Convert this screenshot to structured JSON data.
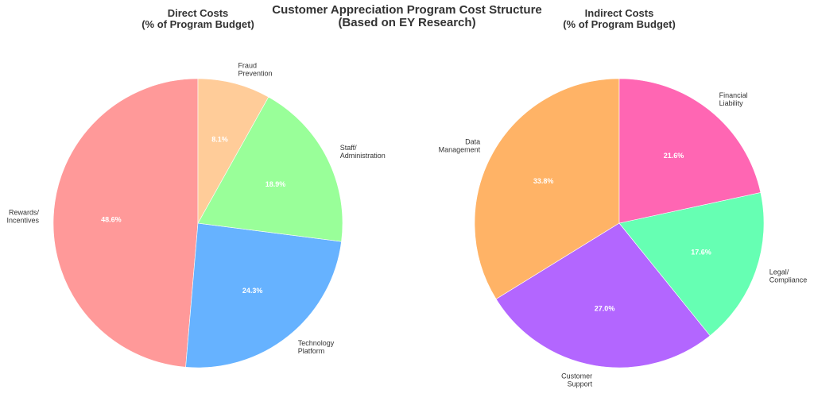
{
  "title_line1": "Customer Appreciation Program Cost Structure",
  "title_line2": "(Based on EY Research)",
  "chart_data": [
    {
      "type": "pie",
      "title": "Direct Costs\n(% of Program Budget)",
      "title_lines": [
        "Direct Costs",
        "(% of Program Budget)"
      ],
      "start_angle_deg": 90,
      "direction": "counterclockwise",
      "slices": [
        {
          "label": "Rewards/\nIncentives",
          "label_lines": [
            "Rewards/",
            "Incentives"
          ],
          "value": 48.6,
          "pct_text": "48.6%",
          "color": "#FF9999"
        },
        {
          "label": "Technology\nPlatform",
          "label_lines": [
            "Technology",
            "Platform"
          ],
          "value": 24.3,
          "pct_text": "24.3%",
          "color": "#66B2FF"
        },
        {
          "label": "Staff/\nAdministration",
          "label_lines": [
            "Staff/",
            "Administration"
          ],
          "value": 18.9,
          "pct_text": "18.9%",
          "color": "#99FF99"
        },
        {
          "label": "Fraud\nPrevention",
          "label_lines": [
            "Fraud",
            "Prevention"
          ],
          "value": 8.1,
          "pct_text": "8.1%",
          "color": "#FFCC99"
        }
      ]
    },
    {
      "type": "pie",
      "title": "Indirect Costs\n(% of Program Budget)",
      "title_lines": [
        "Indirect Costs",
        "(% of Program Budget)"
      ],
      "start_angle_deg": 90,
      "direction": "counterclockwise",
      "slices": [
        {
          "label": "Data\nManagement",
          "label_lines": [
            "Data",
            "Management"
          ],
          "value": 33.8,
          "pct_text": "33.8%",
          "color": "#FFB366"
        },
        {
          "label": "Customer\nSupport",
          "label_lines": [
            "Customer",
            "Support"
          ],
          "value": 27.0,
          "pct_text": "27.0%",
          "color": "#B366FF"
        },
        {
          "label": "Legal/\nCompliance",
          "label_lines": [
            "Legal/",
            "Compliance"
          ],
          "value": 17.6,
          "pct_text": "17.6%",
          "color": "#66FFB3"
        },
        {
          "label": "Financial\nLiability",
          "label_lines": [
            "Financial",
            "Liability"
          ],
          "value": 21.6,
          "pct_text": "21.6%",
          "color": "#FF66B3"
        }
      ]
    }
  ]
}
